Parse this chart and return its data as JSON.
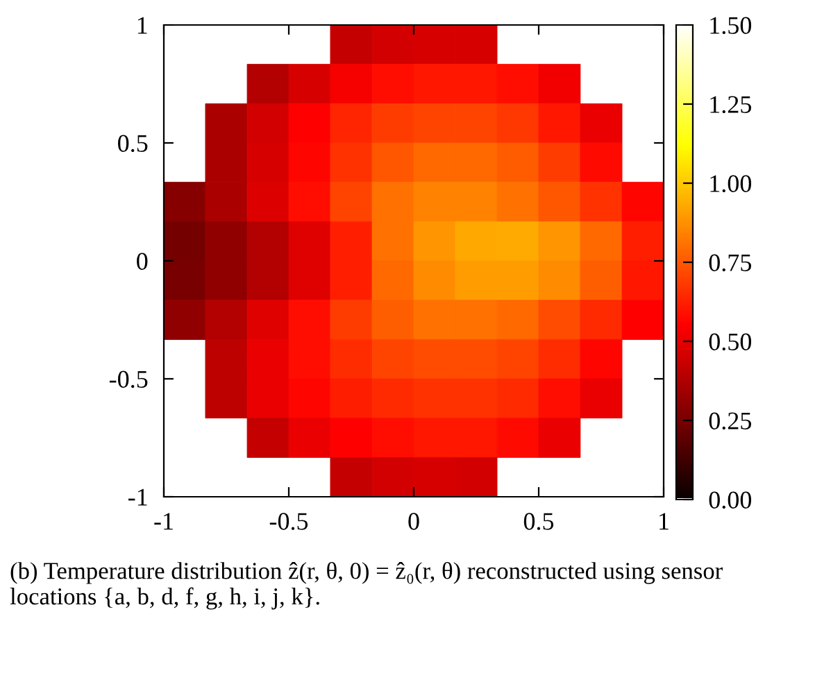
{
  "chart_data": {
    "type": "heatmap",
    "x": [
      -0.917,
      -0.75,
      -0.583,
      -0.417,
      -0.25,
      -0.083,
      0.083,
      0.25,
      0.417,
      0.583,
      0.75,
      0.917
    ],
    "y": [
      0.917,
      0.75,
      0.583,
      0.417,
      0.25,
      0.083,
      -0.083,
      -0.25,
      -0.417,
      -0.583,
      -0.75,
      -0.917
    ],
    "cells": [
      [
        null,
        null,
        null,
        null,
        0.42,
        0.45,
        0.46,
        0.46,
        null,
        null,
        null,
        null
      ],
      [
        null,
        null,
        0.38,
        0.46,
        0.53,
        0.58,
        0.6,
        0.6,
        0.58,
        0.52,
        null,
        null
      ],
      [
        null,
        0.36,
        0.45,
        0.55,
        0.63,
        0.68,
        0.7,
        0.7,
        0.67,
        0.6,
        0.5,
        null
      ],
      [
        null,
        0.36,
        0.46,
        0.56,
        0.66,
        0.74,
        0.78,
        0.78,
        0.75,
        0.68,
        0.57,
        null
      ],
      [
        0.28,
        0.36,
        0.47,
        0.58,
        0.7,
        0.8,
        0.84,
        0.84,
        0.8,
        0.74,
        0.66,
        0.56
      ],
      [
        0.24,
        0.3,
        0.38,
        0.48,
        0.62,
        0.8,
        0.88,
        0.92,
        0.93,
        0.88,
        0.78,
        0.62
      ],
      [
        0.25,
        0.3,
        0.38,
        0.48,
        0.62,
        0.78,
        0.86,
        0.9,
        0.9,
        0.86,
        0.76,
        0.6
      ],
      [
        0.3,
        0.38,
        0.48,
        0.58,
        0.68,
        0.76,
        0.8,
        0.8,
        0.78,
        0.72,
        0.64,
        0.55
      ],
      [
        null,
        0.4,
        0.5,
        0.58,
        0.65,
        0.7,
        0.72,
        0.72,
        0.7,
        0.65,
        0.56,
        null
      ],
      [
        null,
        0.4,
        0.5,
        0.56,
        0.61,
        0.64,
        0.66,
        0.66,
        0.64,
        0.58,
        0.5,
        null
      ],
      [
        null,
        null,
        0.42,
        0.5,
        0.55,
        0.58,
        0.6,
        0.6,
        0.57,
        0.5,
        null,
        null
      ],
      [
        null,
        null,
        null,
        null,
        0.42,
        0.45,
        0.46,
        0.45,
        null,
        null,
        null,
        null
      ]
    ],
    "xlim": [
      -1,
      1
    ],
    "ylim": [
      -1,
      1
    ],
    "xticks": [
      -1,
      -0.5,
      0,
      0.5,
      1
    ],
    "yticks": [
      -1,
      -0.5,
      0,
      0.5,
      1
    ],
    "clim": [
      0,
      1.5
    ],
    "cticks": [
      {
        "value": 0,
        "label": "0.00"
      },
      {
        "value": 0.25,
        "label": "0.25"
      },
      {
        "value": 0.5,
        "label": "0.50"
      },
      {
        "value": 0.75,
        "label": "0.75"
      },
      {
        "value": 1.0,
        "label": "1.00"
      },
      {
        "value": 1.25,
        "label": "1.25"
      },
      {
        "value": 1.5,
        "label": "1.50"
      }
    ],
    "grid": false,
    "annotations": [
      "(b) Temperature distribution ẑ(r, θ, 0) = ẑ₀(r, θ) reconstructed using sensor locations {a, b, d, f, g, h, i, j, k}."
    ]
  }
}
